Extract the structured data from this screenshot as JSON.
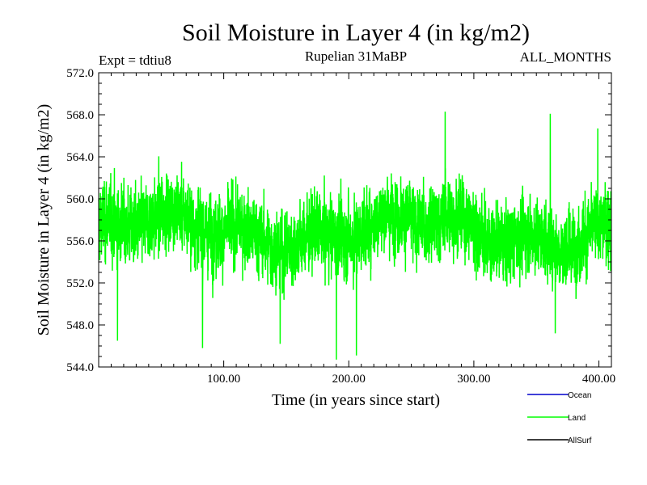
{
  "chart_data": {
    "type": "line",
    "title": "Soil Moisture in Layer 4 (in kg/m2)",
    "subtitle": "Rupelian  31MaBP",
    "experiment": "Expt = tdtiu8",
    "period": "ALL_MONTHS",
    "xlabel": "Time (in years since start)",
    "ylabel": "Soil Moisture in Layer 4 (in kg/m2)",
    "xlim": [
      0,
      410
    ],
    "ylim": [
      544.0,
      572.0
    ],
    "x_ticks": [
      "100.00",
      "200.00",
      "300.00",
      "400.00"
    ],
    "x_tick_values": [
      100,
      200,
      300,
      400
    ],
    "y_ticks": [
      "544.0",
      "548.0",
      "552.0",
      "556.0",
      "560.0",
      "564.0",
      "568.0",
      "572.0"
    ],
    "y_tick_values": [
      544,
      548,
      552,
      556,
      560,
      564,
      568,
      572
    ],
    "series": [
      {
        "name": "Ocean",
        "color": "#0000cc",
        "values": []
      },
      {
        "name": "Land",
        "color": "#00ff00",
        "x_start": 0.083,
        "x_step": 0.0833,
        "n_points": 4920,
        "mean": 557.0,
        "typical_range": [
          550.0,
          564.0
        ],
        "extremes": [
          {
            "x": 15,
            "y": 546.5
          },
          {
            "x": 83,
            "y": 545.8
          },
          {
            "x": 145,
            "y": 546.2
          },
          {
            "x": 190,
            "y": 544.7
          },
          {
            "x": 206,
            "y": 545.1
          },
          {
            "x": 277,
            "y": 568.3
          },
          {
            "x": 361,
            "y": 568.1
          },
          {
            "x": 365,
            "y": 547.2
          },
          {
            "x": 399,
            "y": 566.7
          }
        ]
      },
      {
        "name": "AllSurf",
        "color": "#000000",
        "values": []
      }
    ]
  }
}
